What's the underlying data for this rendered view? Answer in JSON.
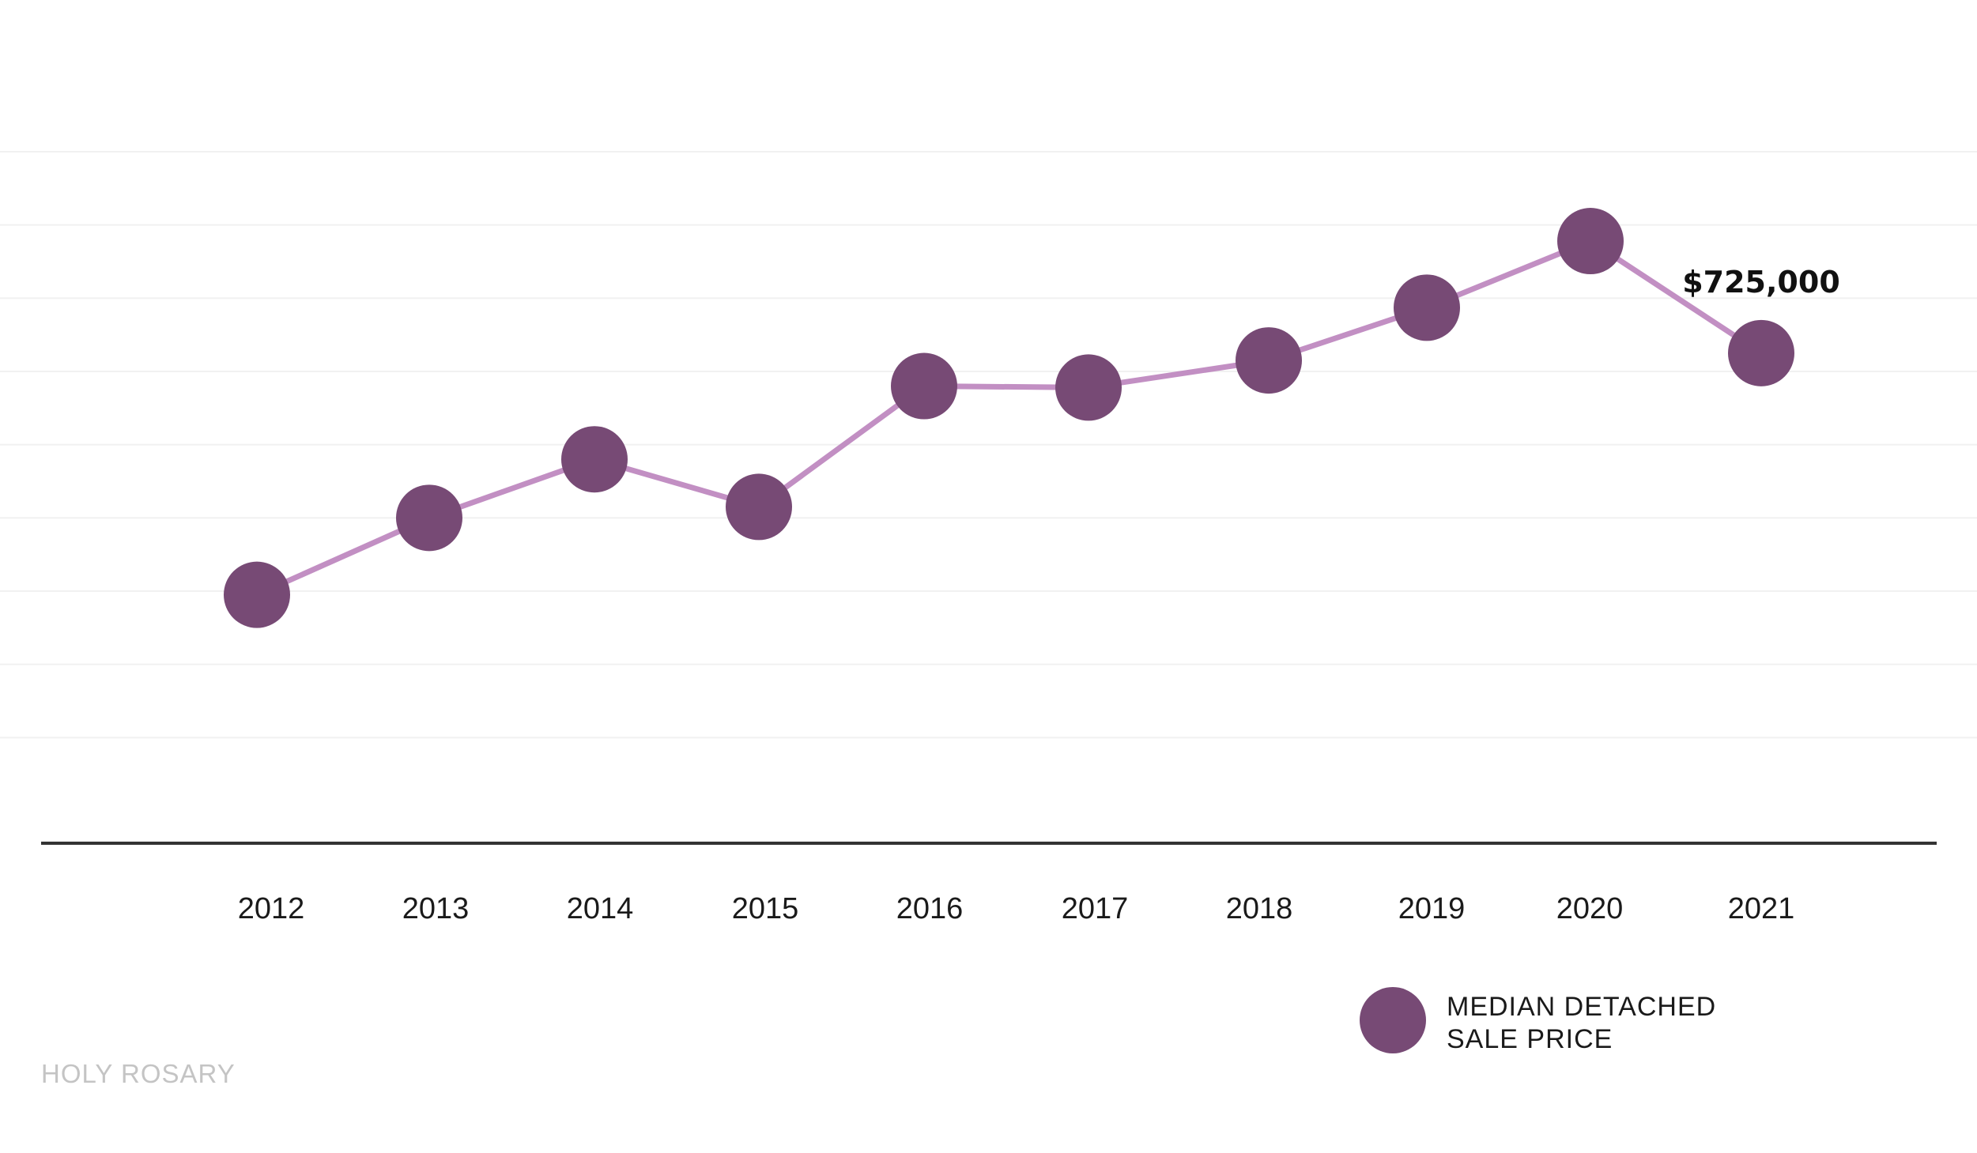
{
  "chart_data": {
    "type": "line",
    "x": [
      "2012",
      "2013",
      "2014",
      "2015",
      "2016",
      "2017",
      "2018",
      "2019",
      "2020",
      "2021"
    ],
    "series": [
      {
        "name": "MEDIAN DETACHED SALE PRICE",
        "values": [
          395000,
          500000,
          580000,
          515000,
          680000,
          678000,
          715000,
          787000,
          878000,
          725000
        ]
      }
    ],
    "data_labels": [
      {
        "index": 9,
        "text": "$725,000"
      }
    ],
    "ylim": [
      100000,
      1000000
    ],
    "grid": true,
    "legend_position": "bottom-right",
    "colors": {
      "marker": "#774a75",
      "line": "#c28fc3",
      "gridline": "#f1f1f1",
      "axis": "#333333"
    }
  },
  "legend": {
    "line1": "MEDIAN DETACHED",
    "line2": "SALE PRICE"
  },
  "footer": {
    "text": "HOLY ROSARY"
  }
}
